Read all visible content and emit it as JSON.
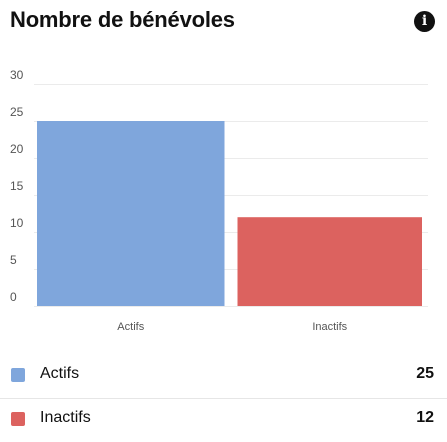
{
  "header": {
    "title": "Nombre de bénévoles",
    "info_icon": "info-icon",
    "info_glyph": "i"
  },
  "chart_data": {
    "type": "bar",
    "categories": [
      "Actifs",
      "Inactifs"
    ],
    "values": [
      25,
      12
    ],
    "colors": [
      "#7fa6dc",
      "#dc625f"
    ],
    "ylim": [
      0,
      30
    ],
    "yticks": [
      "0",
      "5",
      "10",
      "15",
      "20",
      "25",
      "30"
    ],
    "grid": true
  },
  "legend": {
    "items": [
      {
        "label": "Actifs",
        "value": "25",
        "color": "#7fa6dc"
      },
      {
        "label": "Inactifs",
        "value": "12",
        "color": "#dc625f"
      }
    ]
  }
}
